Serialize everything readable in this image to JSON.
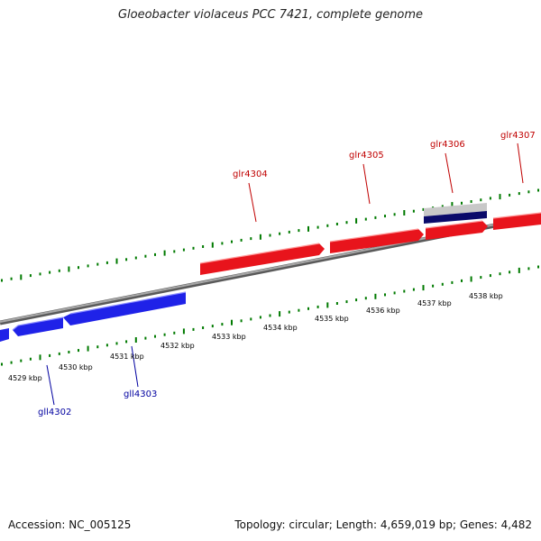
{
  "title": "Gloeobacter violaceus PCC 7421, complete genome",
  "accession": "Accession: NC_005125",
  "topology": "Topology: circular; Length: 4,659,019 bp; Genes: 4,482",
  "colors": {
    "forward_gene": "#e8141c",
    "reverse_gene": "#1f22e8",
    "forward_label": "#c00000",
    "reverse_label": "#0000a0",
    "tick_major": "#007a00",
    "backbone": "#8a8a8a",
    "other_feature": "#0a0a6a"
  },
  "scale_labels": [
    "4529 kbp",
    "4530 kbp",
    "4531 kbp",
    "4532 kbp",
    "4533 kbp",
    "4534 kbp",
    "4535 kbp",
    "4536 kbp",
    "4537 kbp",
    "4538 kbp"
  ],
  "gene_labels": {
    "reverse": [
      "gll4302",
      "gll4303"
    ],
    "forward": [
      "glr4304",
      "glr4305",
      "glr4306",
      "glr4307"
    ]
  }
}
